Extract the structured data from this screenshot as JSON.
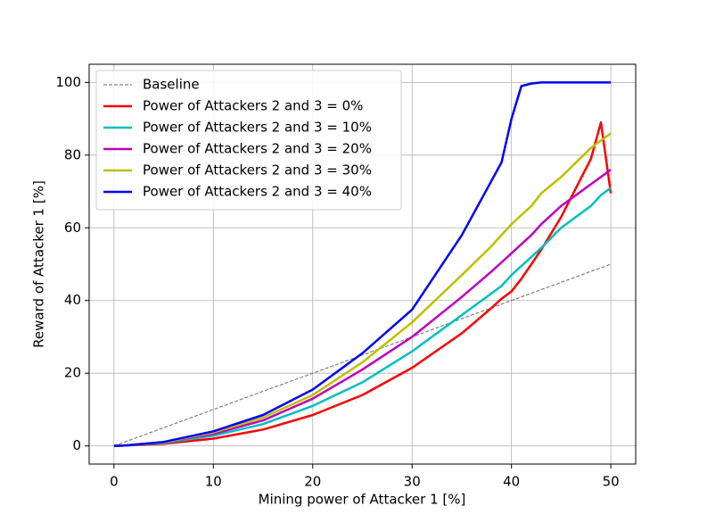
{
  "chart_data": {
    "type": "line",
    "xlabel": "Mining power of Attacker 1 [%]",
    "ylabel": "Reward of Attacker 1 [%]",
    "x": [
      0,
      1,
      5,
      10,
      15,
      20,
      25,
      30,
      35,
      38,
      39,
      40,
      41,
      42,
      43,
      45,
      48,
      49,
      50
    ],
    "series": [
      {
        "name": "Baseline",
        "color": "#808080",
        "linestyle": "dashed",
        "values": [
          0,
          1,
          5,
          10,
          15,
          20,
          25,
          30,
          35,
          38,
          39,
          40,
          41,
          42,
          43,
          45,
          48,
          49,
          50
        ]
      },
      {
        "name": "Power of Attackers 2 and 3 = 0%",
        "color": "#ff0000",
        "linestyle": "solid",
        "values": [
          0,
          0.1,
          0.6,
          2,
          4.5,
          8.5,
          14,
          21.5,
          31,
          38,
          40.5,
          42.5,
          46,
          50,
          54,
          63,
          79,
          89,
          69.5
        ]
      },
      {
        "name": "Power of Attackers 2 and 3 = 10%",
        "color": "#00bfbf",
        "linestyle": "solid",
        "values": [
          0,
          0.1,
          0.8,
          2.8,
          6,
          11,
          17.5,
          26,
          36,
          42,
          44,
          47,
          49.5,
          52,
          54.5,
          60,
          66,
          69,
          71
        ]
      },
      {
        "name": "Power of Attackers 2 and 3 = 20%",
        "color": "#bf00bf",
        "linestyle": "solid",
        "values": [
          0,
          0.1,
          1,
          3.3,
          7,
          13,
          21,
          30,
          41,
          48,
          50.5,
          53,
          55.5,
          58,
          61,
          66,
          72,
          74,
          76
        ]
      },
      {
        "name": "Power of Attackers 2 and 3 = 30%",
        "color": "#bfbf00",
        "linestyle": "solid",
        "values": [
          0,
          0.1,
          1,
          3.7,
          7.8,
          14,
          23,
          34,
          47,
          55,
          58,
          61,
          63.5,
          66,
          69.5,
          74,
          82,
          84,
          86
        ]
      },
      {
        "name": "Power of Attackers 2 and 3 = 40%",
        "color": "#0000ff",
        "linestyle": "solid",
        "values": [
          0,
          0.1,
          1.1,
          4,
          8.5,
          15.5,
          25.5,
          37.5,
          58,
          73,
          78,
          90,
          99,
          99.7,
          100,
          100,
          100,
          100,
          100
        ]
      }
    ],
    "xlim": [
      -2.5,
      52.5
    ],
    "ylim": [
      -5,
      105
    ],
    "xticks": [
      0,
      10,
      20,
      30,
      40,
      50
    ],
    "yticks": [
      0,
      20,
      40,
      60,
      80,
      100
    ],
    "grid": true,
    "legend": "upper left"
  }
}
